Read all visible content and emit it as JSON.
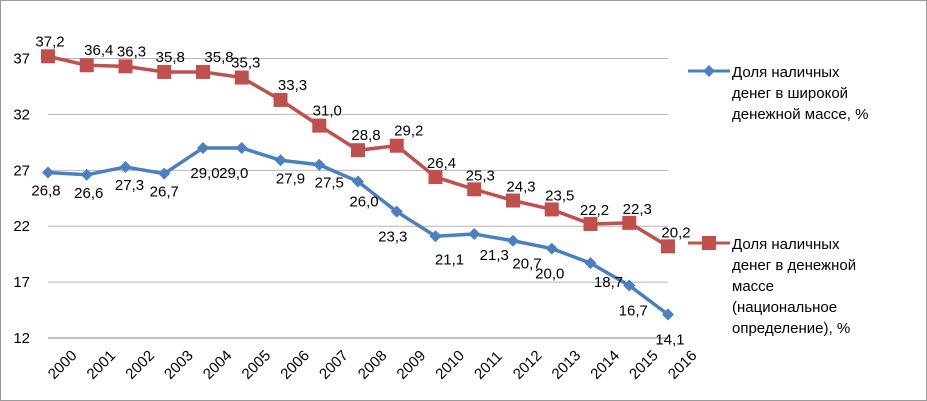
{
  "chart_data": {
    "type": "line",
    "x": [
      "2000",
      "2001",
      "2002",
      "2003",
      "2004",
      "2005",
      "2006",
      "2007",
      "2008",
      "2009",
      "2010",
      "2011",
      "2012",
      "2013",
      "2014",
      "2015",
      "2016"
    ],
    "ylim": [
      12,
      40
    ],
    "yticks": [
      12,
      17,
      22,
      27,
      32,
      37
    ],
    "grid": true,
    "legend_position": "right",
    "series": [
      {
        "name": "Доля наличных денег в широкой денежной массе, %",
        "color": "#4a7fc1",
        "marker": "diamond",
        "values": [
          26.8,
          26.6,
          27.3,
          26.7,
          29.0,
          29.0,
          27.9,
          27.5,
          26.0,
          23.3,
          21.1,
          21.3,
          20.7,
          20.0,
          18.7,
          16.7,
          14.1
        ],
        "labels": [
          "26,8",
          "26,6",
          "27,3",
          "26,7",
          "29,0",
          "29,0",
          "27,9",
          "27,5",
          "26,0",
          "23,3",
          "21,1",
          "21,3",
          "20,7",
          "20,0",
          "18,7",
          "16,7",
          "14,1"
        ]
      },
      {
        "name": "Доля наличных денег в денежной массе (национальное определение), %",
        "color": "#c0504d",
        "marker": "square",
        "values": [
          37.2,
          36.4,
          36.3,
          35.8,
          35.8,
          35.3,
          33.3,
          31.0,
          28.8,
          29.2,
          26.4,
          25.3,
          24.3,
          23.5,
          22.2,
          22.3,
          20.2
        ],
        "labels": [
          "37,2",
          "36,4",
          "36,3",
          "35,8",
          "35,8",
          "35,3",
          "33,3",
          "31,0",
          "28,8",
          "29,2",
          "26,4",
          "25,3",
          "24,3",
          "23,5",
          "22,2",
          "22,3",
          "20,2"
        ]
      }
    ]
  },
  "legend": {
    "blue_lines": [
      "Доля наличных",
      "денег в широкой",
      "денежной массе, %"
    ],
    "red_lines": [
      "Доля наличных",
      "денег в денежной",
      "массе",
      "(национальное",
      "определение), %"
    ]
  }
}
